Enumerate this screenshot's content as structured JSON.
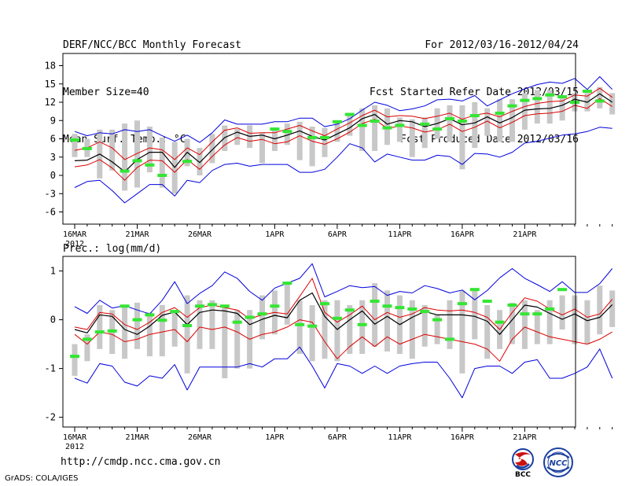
{
  "header": {
    "title": "DERF/NCC/BCC Monthly Forecast",
    "member_size": "Member Size=40",
    "variable": "Mean Surf. Temp.: °C",
    "period": "For 2012/03/16-2012/04/24",
    "refer_date": "Fcst Started Refer Date 2012/03/15",
    "produced_date": "Fcst Produced Date 2012/03/16"
  },
  "footer": {
    "url": "http://cmdp.ncc.cma.gov.cn",
    "credit": "GrADS: COLA/IGES",
    "logo_bcc": "BCC",
    "logo_ncc": "NCC"
  },
  "colors": {
    "mean": "#000000",
    "upper_lower": "#0000dd",
    "median_band": "#dd0000",
    "spread_bar": "#c8c8c8",
    "observed": "#33e633"
  },
  "chart_data": [
    {
      "type": "line",
      "title": "Mean Surf. Temp.: °C",
      "x_start": "2012-03-16",
      "x_ticks": [
        {
          "day": 0,
          "label": "16MAR"
        },
        {
          "day": 5,
          "label": "21MAR"
        },
        {
          "day": 10,
          "label": "26MAR"
        },
        {
          "day": 16,
          "label": "1APR"
        },
        {
          "day": 21,
          "label": "6APR"
        },
        {
          "day": 26,
          "label": "11APR"
        },
        {
          "day": 31,
          "label": "16APR"
        },
        {
          "day": 36,
          "label": "21APR"
        }
      ],
      "year_label": "2012",
      "ylim": [
        -8,
        20
      ],
      "yticks": [
        -6,
        -3,
        0,
        3,
        6,
        9,
        12,
        15,
        18
      ],
      "series": [
        {
          "name": "ensemble max",
          "role": "upper",
          "values": [
            7.2,
            6.5,
            7.0,
            6.8,
            7.5,
            7.2,
            7.5,
            6.5,
            5.6,
            6.6,
            5.4,
            7.0,
            9.1,
            8.4,
            8.4,
            8.4,
            8.8,
            8.8,
            9.4,
            9.4,
            8.0,
            8.4,
            9.3,
            10.7,
            12.0,
            11.5,
            10.6,
            10.9,
            11.4,
            12.4,
            12.5,
            12.2,
            13.1,
            11.4,
            12.4,
            13.4,
            14.2,
            14.9,
            15.3,
            15.1,
            15.9,
            14.1,
            16.2,
            14.1
          ]
        },
        {
          "name": "ensemble min",
          "role": "lower",
          "values": [
            -2.0,
            -1.0,
            -0.8,
            -2.5,
            -4.5,
            -3.0,
            -1.5,
            -1.5,
            -3.4,
            -0.8,
            -1.2,
            0.8,
            1.8,
            2.0,
            1.5,
            1.8,
            1.8,
            1.8,
            0.5,
            0.5,
            1.0,
            3.0,
            5.2,
            4.5,
            2.2,
            3.5,
            3.0,
            2.5,
            2.5,
            3.3,
            3.1,
            1.8,
            3.6,
            3.5,
            3.0,
            3.8,
            5.3,
            5.6,
            6.1,
            6.6,
            6.8,
            7.2,
            7.9,
            7.7
          ]
        },
        {
          "name": "ensemble mean",
          "role": "mean",
          "values": [
            2.4,
            2.5,
            3.5,
            2.2,
            0.6,
            2.6,
            3.8,
            3.8,
            1.3,
            3.8,
            2.1,
            4.2,
            6.2,
            7.1,
            6.4,
            6.6,
            6.0,
            6.6,
            7.3,
            6.4,
            5.8,
            6.8,
            7.8,
            9.3,
            10.0,
            8.4,
            9.0,
            8.8,
            8.0,
            8.5,
            9.3,
            8.3,
            8.6,
            9.6,
            8.6,
            9.5,
            10.7,
            10.9,
            11.0,
            11.5,
            12.5,
            12.0,
            13.4,
            12.0
          ]
        },
        {
          "name": "upper percentile",
          "role": "band",
          "values": [
            4.1,
            4.5,
            5.5,
            4.5,
            2.6,
            3.6,
            4.5,
            4.2,
            2.6,
            4.5,
            3.4,
            5.5,
            7.4,
            7.8,
            6.9,
            7.0,
            7.0,
            7.6,
            8.2,
            7.3,
            6.5,
            7.6,
            8.6,
            9.8,
            10.7,
            9.6,
            9.8,
            9.7,
            9.3,
            9.7,
            10.2,
            9.2,
            9.9,
            10.2,
            9.6,
            10.5,
            11.3,
            11.8,
            12.1,
            12.2,
            13.2,
            13.0,
            14.3,
            12.8
          ]
        },
        {
          "name": "lower percentile",
          "role": "band",
          "values": [
            1.4,
            1.7,
            2.6,
            1.2,
            -0.8,
            1.3,
            2.5,
            2.4,
            0.5,
            2.6,
            1.0,
            3.1,
            5.0,
            6.2,
            5.6,
            5.9,
            5.2,
            5.5,
            6.5,
            5.6,
            5.1,
            6.0,
            7.1,
            8.5,
            9.2,
            7.7,
            8.1,
            7.8,
            7.1,
            7.5,
            8.4,
            7.2,
            7.9,
            8.9,
            7.8,
            8.7,
            9.8,
            10.1,
            10.2,
            10.5,
            11.5,
            11.0,
            12.6,
            11.3
          ]
        },
        {
          "name": "observed",
          "role": "observed",
          "values": [
            5.8,
            4.4,
            null,
            null,
            0.7,
            2.4,
            1.7,
            0.0,
            null,
            2.3,
            null,
            null,
            null,
            null,
            null,
            null,
            7.6,
            7.2,
            null,
            6.2,
            6.2,
            8.8,
            10.0,
            8.2,
            8.9,
            7.8,
            8.2,
            null,
            8.4,
            7.6,
            9.3,
            8.9,
            9.8,
            null,
            10.2,
            11.4,
            12.3,
            12.6,
            13.2,
            12.9,
            12.0,
            13.8,
            12.2,
            null
          ]
        },
        {
          "name": "spread bar top",
          "role": "bar_top",
          "values": [
            6.8,
            6.0,
            7.5,
            7.5,
            8.5,
            9.0,
            8.0,
            6.2,
            5.5,
            6.0,
            4.5,
            6.8,
            8.2,
            7.6,
            8.2,
            7.0,
            7.8,
            8.5,
            8.8,
            8.0,
            7.8,
            9.0,
            10.0,
            11.0,
            11.5,
            11.0,
            9.5,
            9.2,
            9.5,
            11.0,
            11.5,
            11.5,
            12.0,
            11.0,
            12.5,
            12.5,
            13.5,
            14.0,
            14.0,
            13.0,
            13.5,
            13.5,
            14.5,
            13.5
          ]
        },
        {
          "name": "spread bar bottom",
          "role": "bar_bottom",
          "values": [
            3.0,
            3.0,
            -0.5,
            0.8,
            -2.5,
            -2.0,
            0.5,
            -2.0,
            -3.0,
            1.5,
            0.0,
            2.0,
            4.0,
            5.0,
            4.5,
            2.0,
            4.0,
            5.0,
            2.5,
            1.5,
            3.0,
            5.5,
            6.5,
            4.0,
            4.0,
            5.0,
            5.5,
            3.0,
            4.5,
            6.0,
            5.5,
            1.0,
            4.5,
            6.5,
            5.5,
            5.5,
            7.5,
            8.5,
            8.5,
            9.0,
            10.5,
            10.5,
            11.0,
            10.0
          ]
        }
      ]
    },
    {
      "type": "line",
      "title": "Prec.: log(mm/d)",
      "x_start": "2012-03-16",
      "x_ticks": [
        {
          "day": 0,
          "label": "16MAR"
        },
        {
          "day": 5,
          "label": "21MAR"
        },
        {
          "day": 10,
          "label": "26MAR"
        },
        {
          "day": 16,
          "label": "1APR"
        },
        {
          "day": 21,
          "label": "6APR"
        },
        {
          "day": 26,
          "label": "11APR"
        },
        {
          "day": 31,
          "label": "16APR"
        },
        {
          "day": 36,
          "label": "21APR"
        }
      ],
      "year_label": "2012",
      "ylim": [
        -2.2,
        1.3
      ],
      "yticks": [
        -2,
        -1,
        0,
        1
      ],
      "series": [
        {
          "name": "ensemble max",
          "role": "upper",
          "values": [
            0.27,
            0.13,
            0.4,
            0.24,
            0.29,
            0.2,
            0.12,
            0.4,
            0.78,
            0.33,
            0.54,
            0.7,
            0.98,
            0.85,
            0.58,
            0.4,
            0.65,
            0.75,
            0.85,
            1.15,
            0.47,
            0.58,
            0.7,
            0.66,
            0.68,
            0.5,
            0.58,
            0.55,
            0.7,
            0.64,
            0.55,
            0.61,
            0.41,
            0.6,
            0.86,
            1.05,
            0.85,
            0.72,
            0.58,
            0.78,
            0.56,
            0.56,
            0.74,
            1.05
          ]
        },
        {
          "name": "ensemble min",
          "role": "lower",
          "values": [
            -1.2,
            -1.3,
            -0.9,
            -0.95,
            -1.28,
            -1.36,
            -1.15,
            -1.2,
            -0.92,
            -1.44,
            -0.97,
            -0.97,
            -0.97,
            -0.97,
            -0.9,
            -0.97,
            -0.8,
            -0.8,
            -0.56,
            -0.95,
            -1.4,
            -0.9,
            -0.95,
            -1.1,
            -0.95,
            -1.1,
            -0.95,
            -0.9,
            -0.87,
            -0.87,
            -1.2,
            -1.6,
            -1.0,
            -0.95,
            -0.95,
            -1.1,
            -0.87,
            -0.82,
            -1.2,
            -1.2,
            -1.1,
            -0.97,
            -0.6,
            -1.2
          ]
        },
        {
          "name": "ensemble mean",
          "role": "mean",
          "values": [
            -0.2,
            -0.27,
            0.1,
            0.07,
            -0.2,
            -0.3,
            -0.13,
            0.09,
            0.16,
            -0.1,
            0.15,
            0.2,
            0.18,
            0.13,
            -0.1,
            0.01,
            0.09,
            0.04,
            0.4,
            0.55,
            0.07,
            -0.2,
            0.0,
            0.18,
            -0.09,
            0.07,
            -0.1,
            0.05,
            0.17,
            0.1,
            0.1,
            0.1,
            0.07,
            -0.03,
            -0.3,
            0.0,
            0.3,
            0.26,
            0.13,
            0.01,
            0.12,
            -0.02,
            0.05,
            0.31
          ]
        },
        {
          "name": "upper percentile",
          "role": "band",
          "values": [
            -0.15,
            -0.2,
            0.15,
            0.12,
            -0.1,
            -0.2,
            -0.05,
            0.15,
            0.25,
            0.05,
            0.25,
            0.3,
            0.25,
            0.2,
            0.02,
            0.1,
            0.15,
            0.12,
            0.48,
            0.85,
            0.15,
            -0.05,
            0.1,
            0.28,
            0.0,
            0.15,
            0.05,
            0.12,
            0.25,
            0.2,
            0.18,
            0.2,
            0.15,
            0.05,
            -0.2,
            0.15,
            0.45,
            0.38,
            0.22,
            0.1,
            0.22,
            0.05,
            0.12,
            0.42
          ]
        },
        {
          "name": "lower percentile",
          "role": "band",
          "values": [
            -0.3,
            -0.5,
            -0.25,
            -0.3,
            -0.45,
            -0.4,
            -0.3,
            -0.25,
            -0.2,
            -0.45,
            -0.15,
            -0.2,
            -0.15,
            -0.25,
            -0.4,
            -0.3,
            -0.25,
            -0.15,
            0.0,
            -0.05,
            -0.45,
            -0.8,
            -0.55,
            -0.35,
            -0.55,
            -0.35,
            -0.5,
            -0.4,
            -0.3,
            -0.35,
            -0.4,
            -0.45,
            -0.5,
            -0.6,
            -0.85,
            -0.4,
            -0.15,
            -0.25,
            -0.35,
            -0.4,
            -0.45,
            -0.5,
            -0.4,
            -0.25
          ]
        },
        {
          "name": "observed",
          "role": "observed",
          "values": [
            -0.75,
            -0.4,
            -0.25,
            -0.23,
            0.28,
            0.0,
            0.1,
            -0.01,
            0.17,
            -0.12,
            0.28,
            0.31,
            0.28,
            -0.05,
            0.05,
            0.12,
            0.28,
            0.75,
            -0.1,
            -0.13,
            0.33,
            0.03,
            0.2,
            -0.1,
            0.38,
            0.28,
            0.25,
            0.22,
            0.17,
            0.0,
            -0.4,
            0.33,
            0.62,
            0.38,
            -0.05,
            0.3,
            0.12,
            0.12,
            0.22,
            0.62,
            null,
            null,
            null,
            null
          ]
        },
        {
          "name": "spread bar top",
          "role": "bar_top",
          "values": [
            -0.5,
            -0.3,
            0.3,
            0.2,
            0.3,
            0.35,
            0.15,
            0.3,
            0.15,
            0.5,
            0.4,
            0.4,
            0.3,
            0.2,
            0.2,
            0.5,
            0.6,
            0.75,
            0.4,
            0.3,
            0.4,
            0.4,
            0.3,
            0.4,
            0.75,
            0.6,
            0.5,
            0.4,
            0.3,
            0.1,
            0.4,
            0.6,
            0.6,
            0.3,
            0.2,
            0.35,
            0.4,
            0.2,
            0.4,
            0.5,
            0.5,
            0.4,
            0.7,
            0.6
          ]
        },
        {
          "name": "spread bar bottom",
          "role": "bar_bottom",
          "values": [
            -1.15,
            -0.85,
            -0.6,
            -0.7,
            -0.8,
            -0.6,
            -0.75,
            -0.75,
            -0.55,
            -1.1,
            -0.6,
            -0.6,
            -1.2,
            -1.0,
            -1.0,
            -0.4,
            -0.3,
            -0.1,
            -0.7,
            -0.85,
            -0.8,
            -0.85,
            -0.7,
            -0.7,
            -0.55,
            -0.65,
            -0.7,
            -0.8,
            -0.55,
            -0.5,
            -0.6,
            -1.1,
            -0.4,
            -0.8,
            -0.6,
            -0.5,
            -0.6,
            -0.5,
            -0.5,
            -0.2,
            -0.5,
            -0.5,
            -0.3,
            -0.15
          ]
        }
      ]
    }
  ]
}
